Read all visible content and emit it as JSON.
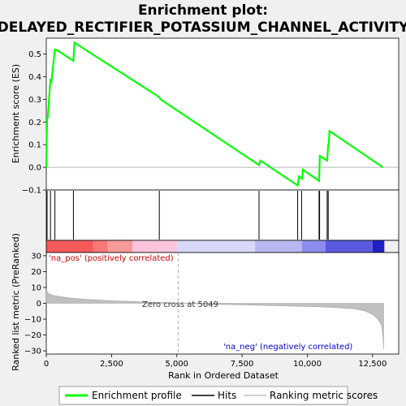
{
  "title_line1": "Enrichment plot:",
  "title_line2": "DELAYED_RECTIFIER_POTASSIUM_CHANNEL_ACTIVITY",
  "chart_data": {
    "type": "line",
    "top_panel": {
      "ylabel": "Enrichment score (ES)",
      "ylim": [
        -0.1,
        0.57
      ],
      "yticks": [
        -0.1,
        0.0,
        0.1,
        0.2,
        0.3,
        0.4,
        0.5
      ],
      "ytick_labels": [
        "−0.1",
        "0.0",
        "0.1",
        "0.2",
        "0.3",
        "0.4",
        "0.5"
      ],
      "series": [
        {
          "name": "Enrichment profile",
          "color": "#00ff00",
          "x": [
            0,
            30,
            60,
            160,
            200,
            330,
            370,
            1040,
            1080,
            4330,
            4380,
            8150,
            8200,
            9630,
            9680,
            9800,
            9830,
            10450,
            10480,
            10760,
            10800,
            10820,
            10850,
            12900
          ],
          "y": [
            0.0,
            0.22,
            0.22,
            0.39,
            0.38,
            0.52,
            0.52,
            0.47,
            0.55,
            0.31,
            0.3,
            0.01,
            0.03,
            -0.08,
            -0.04,
            -0.05,
            -0.01,
            -0.06,
            0.05,
            0.03,
            0.1,
            0.1,
            0.16,
            0.0
          ]
        }
      ]
    },
    "hits": {
      "name": "Hits",
      "x": [
        30,
        160,
        330,
        1040,
        4330,
        8150,
        9630,
        9780,
        10450,
        10470,
        10760,
        10800
      ]
    },
    "color_bar": {
      "segments": [
        {
          "from": 0,
          "to": 1800,
          "color": "#f45a5a"
        },
        {
          "from": 1800,
          "to": 2350,
          "color": "#f67878"
        },
        {
          "from": 2350,
          "to": 3300,
          "color": "#f89a9a"
        },
        {
          "from": 3300,
          "to": 5000,
          "color": "#fbc4dc"
        },
        {
          "from": 5000,
          "to": 8000,
          "color": "#d8d8f8"
        },
        {
          "from": 8000,
          "to": 9800,
          "color": "#b8b8f0"
        },
        {
          "from": 9800,
          "to": 10700,
          "color": "#8c8cec"
        },
        {
          "from": 10700,
          "to": 12500,
          "color": "#5a5ae0"
        },
        {
          "from": 12500,
          "to": 12950,
          "color": "#2020c8"
        }
      ]
    },
    "bottom_panel": {
      "ylabel": "Ranked list metric (PreRanked)",
      "xlabel": "Rank in Ordered Dataset",
      "ylim": [
        -32,
        32
      ],
      "yticks": [
        -30,
        -20,
        -10,
        0,
        10,
        20,
        30
      ],
      "ytick_labels": [
        "−30",
        "−20",
        "−10",
        "0",
        "10",
        "20",
        "30"
      ],
      "series": [
        {
          "name": "Ranking metric scores",
          "color": "#c0c0c0",
          "x": [
            0,
            100,
            300,
            600,
            1000,
            1500,
            2500,
            3500,
            4500,
            5049,
            6000,
            7000,
            8000,
            9000,
            10000,
            11000,
            11800,
            12200,
            12500,
            12700,
            12850,
            12900,
            12920
          ],
          "y": [
            8,
            6,
            4.8,
            4,
            3.2,
            2.5,
            1.6,
            1,
            0.5,
            0,
            -0.4,
            -0.8,
            -1.2,
            -1.6,
            -2,
            -2.6,
            -3.5,
            -4.8,
            -7,
            -10,
            -14,
            -22,
            -29
          ]
        }
      ],
      "label_pos": "'na_pos' (positively correlated)",
      "label_neg": "'na_neg' (negatively correlated)",
      "zero_cross_label": "Zero cross at 5049",
      "zero_cross": 5049
    },
    "xlim": [
      0,
      13500
    ],
    "xticks": [
      0,
      2500,
      5000,
      7500,
      10000,
      12500
    ],
    "xtick_labels": [
      "0",
      "2,500",
      "5,000",
      "7,500",
      "10,000",
      "12,500"
    ],
    "legend": [
      "Enrichment profile",
      "Hits",
      "Ranking metric scores"
    ],
    "legend_placement": "bottom"
  }
}
